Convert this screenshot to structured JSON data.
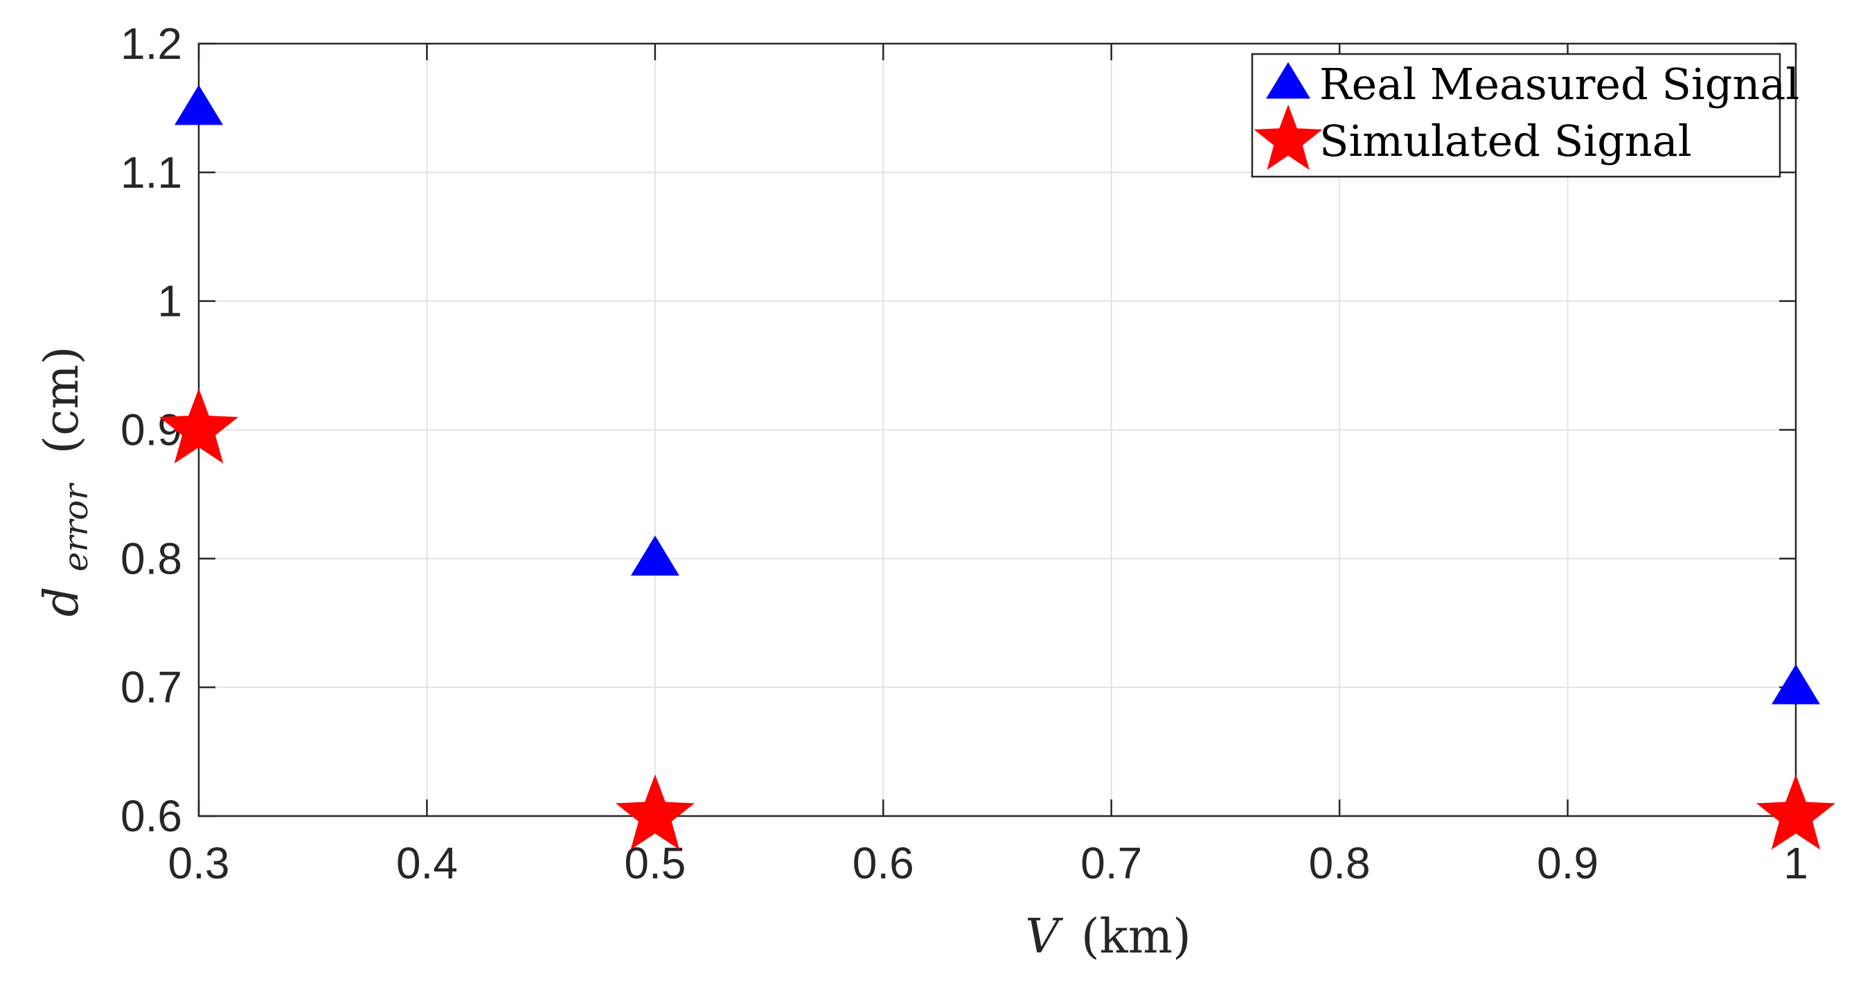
{
  "chart_data": {
    "type": "scatter",
    "title": "",
    "xlabel": "V (km)",
    "xlabel_parts": {
      "var": "V",
      "unit": "(km)"
    },
    "ylabel": "d_error (cm)",
    "ylabel_parts": {
      "var": "d",
      "sub": "error",
      "unit": "(cm)"
    },
    "xlim": [
      0.3,
      1.0
    ],
    "ylim": [
      0.6,
      1.2
    ],
    "xticks": [
      0.3,
      0.4,
      0.5,
      0.6,
      0.7,
      0.8,
      0.9,
      1.0
    ],
    "xtick_labels": [
      "0.3",
      "0.4",
      "0.5",
      "0.6",
      "0.7",
      "0.8",
      "0.9",
      "1"
    ],
    "yticks": [
      0.6,
      0.7,
      0.8,
      0.9,
      1.0,
      1.1,
      1.2
    ],
    "ytick_labels": [
      "0.6",
      "0.7",
      "0.8",
      "0.9",
      "1",
      "1.1",
      "1.2"
    ],
    "grid": true,
    "legend_position": "top-right",
    "series": [
      {
        "name": "Real Measured Signal",
        "marker": "triangle",
        "color": "#0000ff",
        "x": [
          0.3,
          0.5,
          1.0
        ],
        "y": [
          1.15,
          0.8,
          0.7
        ]
      },
      {
        "name": "Simulated Signal",
        "marker": "star",
        "color": "#ff0000",
        "x": [
          0.3,
          0.5,
          1.0
        ],
        "y": [
          0.9,
          0.6,
          0.6
        ]
      }
    ]
  }
}
